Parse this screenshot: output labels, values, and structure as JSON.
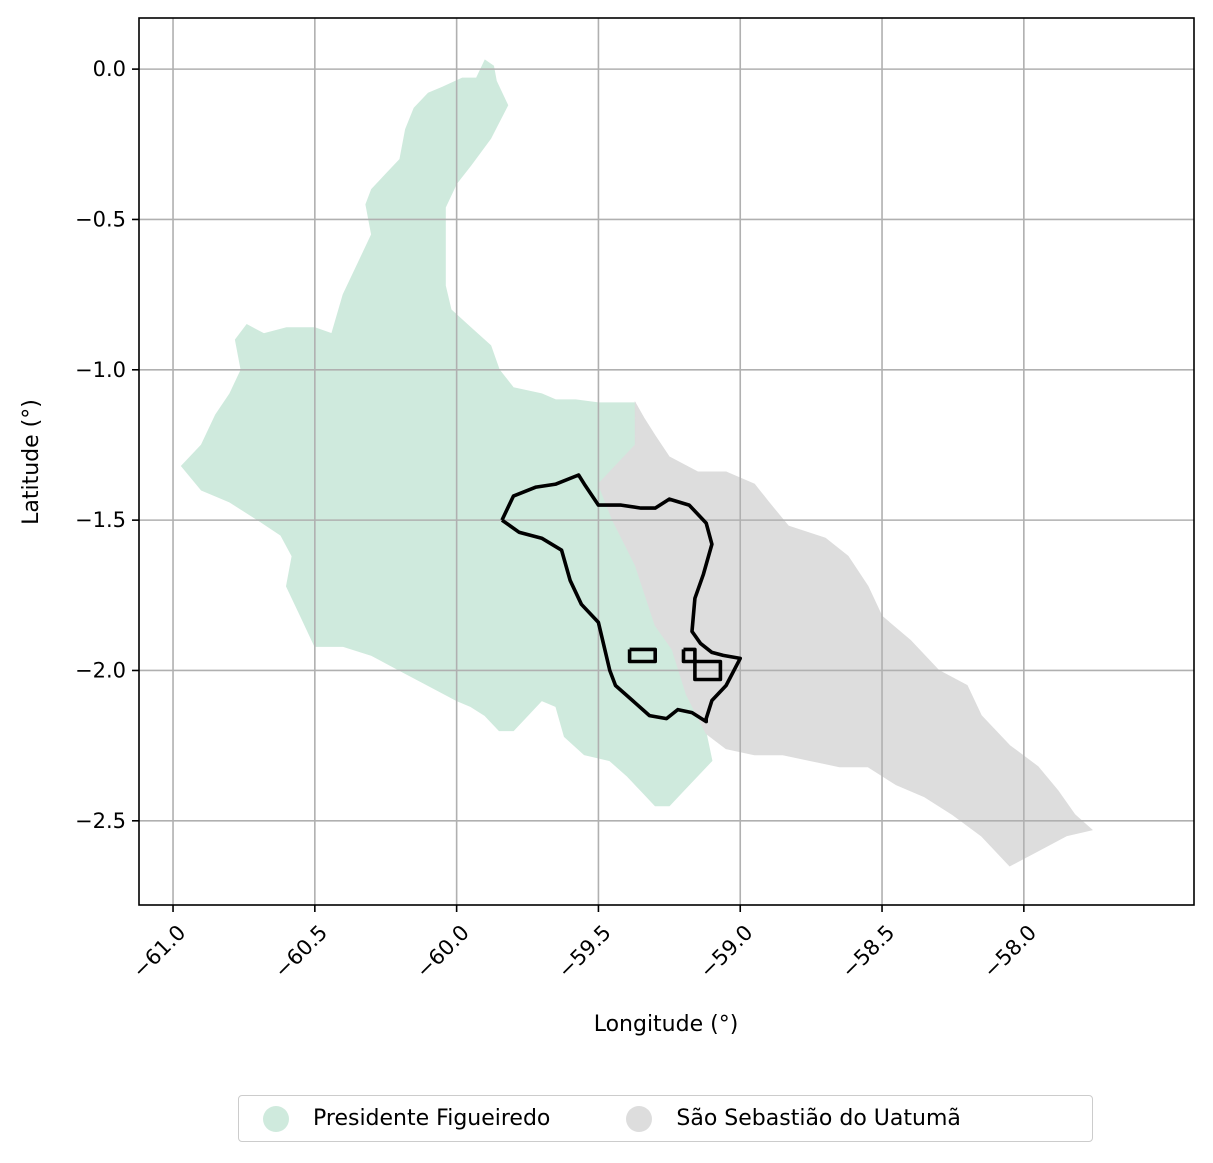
{
  "chart_data": {
    "type": "map",
    "xlabel": "Longitude (°)",
    "ylabel": "Latitude (°)",
    "xlim": [
      -61.12,
      -57.4
    ],
    "ylim": [
      -2.78,
      0.17
    ],
    "x_ticks": [
      -61.0,
      -60.5,
      -60.0,
      -59.5,
      -59.0,
      -58.5,
      -58.0
    ],
    "x_tick_labels": [
      "−61.0",
      "−60.5",
      "−60.0",
      "−59.5",
      "−59.0",
      "−58.5",
      "−58.0"
    ],
    "y_ticks": [
      0.0,
      -0.5,
      -1.0,
      -1.5,
      -2.0,
      -2.5
    ],
    "y_tick_labels": [
      "0.0",
      "−0.5",
      "−1.0",
      "−1.5",
      "−2.0",
      "−2.5"
    ],
    "grid": true,
    "legend_placement": "bottom-center, below plot",
    "regions": [
      {
        "name": "Presidente Figueiredo",
        "color": "#cfeadd",
        "boundary": [
          [
            -59.9,
            0.03
          ],
          [
            -59.87,
            0.01
          ],
          [
            -59.86,
            -0.04
          ],
          [
            -59.82,
            -0.12
          ],
          [
            -59.88,
            -0.23
          ],
          [
            -59.95,
            -0.32
          ],
          [
            -60.0,
            -0.38
          ],
          [
            -60.04,
            -0.46
          ],
          [
            -60.04,
            -0.6
          ],
          [
            -60.04,
            -0.72
          ],
          [
            -60.02,
            -0.8
          ],
          [
            -59.95,
            -0.86
          ],
          [
            -59.88,
            -0.92
          ],
          [
            -59.85,
            -1.0
          ],
          [
            -59.8,
            -1.06
          ],
          [
            -59.7,
            -1.08
          ],
          [
            -59.65,
            -1.1
          ],
          [
            -59.58,
            -1.1
          ],
          [
            -59.5,
            -1.11
          ],
          [
            -59.37,
            -1.11
          ],
          [
            -59.37,
            -1.25
          ],
          [
            -59.4,
            -1.28
          ],
          [
            -59.45,
            -1.33
          ],
          [
            -59.5,
            -1.38
          ],
          [
            -59.45,
            -1.5
          ],
          [
            -59.37,
            -1.65
          ],
          [
            -59.3,
            -1.85
          ],
          [
            -59.24,
            -1.93
          ],
          [
            -59.19,
            -2.08
          ],
          [
            -59.12,
            -2.21
          ],
          [
            -59.1,
            -2.3
          ],
          [
            -59.15,
            -2.35
          ],
          [
            -59.2,
            -2.4
          ],
          [
            -59.25,
            -2.45
          ],
          [
            -59.3,
            -2.45
          ],
          [
            -59.35,
            -2.4
          ],
          [
            -59.4,
            -2.35
          ],
          [
            -59.46,
            -2.3
          ],
          [
            -59.55,
            -2.28
          ],
          [
            -59.62,
            -2.22
          ],
          [
            -59.65,
            -2.12
          ],
          [
            -59.7,
            -2.1
          ],
          [
            -59.75,
            -2.15
          ],
          [
            -59.8,
            -2.2
          ],
          [
            -59.85,
            -2.2
          ],
          [
            -59.9,
            -2.15
          ],
          [
            -59.95,
            -2.12
          ],
          [
            -60.0,
            -2.1
          ],
          [
            -60.1,
            -2.05
          ],
          [
            -60.2,
            -2.0
          ],
          [
            -60.3,
            -1.95
          ],
          [
            -60.4,
            -1.92
          ],
          [
            -60.5,
            -1.92
          ],
          [
            -60.55,
            -1.82
          ],
          [
            -60.6,
            -1.72
          ],
          [
            -60.58,
            -1.62
          ],
          [
            -60.62,
            -1.55
          ],
          [
            -60.7,
            -1.5
          ],
          [
            -60.8,
            -1.44
          ],
          [
            -60.85,
            -1.42
          ],
          [
            -60.9,
            -1.4
          ],
          [
            -60.97,
            -1.32
          ],
          [
            -60.9,
            -1.25
          ],
          [
            -60.85,
            -1.15
          ],
          [
            -60.8,
            -1.08
          ],
          [
            -60.76,
            -1.0
          ],
          [
            -60.78,
            -0.9
          ],
          [
            -60.74,
            -0.85
          ],
          [
            -60.68,
            -0.88
          ],
          [
            -60.6,
            -0.86
          ],
          [
            -60.5,
            -0.86
          ],
          [
            -60.44,
            -0.88
          ],
          [
            -60.4,
            -0.75
          ],
          [
            -60.35,
            -0.65
          ],
          [
            -60.3,
            -0.55
          ],
          [
            -60.32,
            -0.45
          ],
          [
            -60.3,
            -0.4
          ],
          [
            -60.25,
            -0.35
          ],
          [
            -60.2,
            -0.3
          ],
          [
            -60.18,
            -0.2
          ],
          [
            -60.15,
            -0.13
          ],
          [
            -60.1,
            -0.08
          ],
          [
            -60.05,
            -0.06
          ],
          [
            -59.98,
            -0.03
          ],
          [
            -59.93,
            -0.03
          ]
        ]
      },
      {
        "name": "São Sebastião do Uatumã",
        "color": "#dddddd",
        "boundary": [
          [
            -59.37,
            -1.11
          ],
          [
            -59.34,
            -1.16
          ],
          [
            -59.3,
            -1.22
          ],
          [
            -59.25,
            -1.29
          ],
          [
            -59.15,
            -1.34
          ],
          [
            -59.05,
            -1.34
          ],
          [
            -58.95,
            -1.38
          ],
          [
            -58.9,
            -1.44
          ],
          [
            -58.83,
            -1.52
          ],
          [
            -58.7,
            -1.56
          ],
          [
            -58.62,
            -1.62
          ],
          [
            -58.55,
            -1.72
          ],
          [
            -58.5,
            -1.82
          ],
          [
            -58.4,
            -1.9
          ],
          [
            -58.3,
            -2.0
          ],
          [
            -58.2,
            -2.05
          ],
          [
            -58.15,
            -2.15
          ],
          [
            -58.05,
            -2.25
          ],
          [
            -57.95,
            -2.32
          ],
          [
            -57.88,
            -2.4
          ],
          [
            -57.82,
            -2.48
          ],
          [
            -57.76,
            -2.53
          ],
          [
            -57.85,
            -2.55
          ],
          [
            -57.95,
            -2.6
          ],
          [
            -58.05,
            -2.65
          ],
          [
            -58.15,
            -2.55
          ],
          [
            -58.25,
            -2.48
          ],
          [
            -58.35,
            -2.42
          ],
          [
            -58.45,
            -2.38
          ],
          [
            -58.55,
            -2.32
          ],
          [
            -58.65,
            -2.32
          ],
          [
            -58.75,
            -2.3
          ],
          [
            -58.85,
            -2.28
          ],
          [
            -58.95,
            -2.28
          ],
          [
            -59.05,
            -2.26
          ],
          [
            -59.12,
            -2.21
          ],
          [
            -59.19,
            -2.08
          ],
          [
            -59.24,
            -1.93
          ],
          [
            -59.3,
            -1.85
          ],
          [
            -59.37,
            -1.65
          ],
          [
            -59.45,
            -1.5
          ],
          [
            -59.5,
            -1.38
          ],
          [
            -59.45,
            -1.33
          ],
          [
            -59.4,
            -1.28
          ],
          [
            -59.37,
            -1.25
          ]
        ]
      }
    ],
    "outlines": [
      [
        [
          -59.84,
          -1.5
        ],
        [
          -59.8,
          -1.42
        ],
        [
          -59.72,
          -1.39
        ],
        [
          -59.65,
          -1.38
        ],
        [
          -59.57,
          -1.35
        ],
        [
          -59.55,
          -1.38
        ],
        [
          -59.5,
          -1.45
        ],
        [
          -59.42,
          -1.45
        ],
        [
          -59.35,
          -1.46
        ],
        [
          -59.3,
          -1.46
        ],
        [
          -59.25,
          -1.43
        ],
        [
          -59.18,
          -1.45
        ],
        [
          -59.12,
          -1.51
        ],
        [
          -59.1,
          -1.58
        ],
        [
          -59.13,
          -1.68
        ],
        [
          -59.16,
          -1.76
        ],
        [
          -59.17,
          -1.87
        ],
        [
          -59.14,
          -1.91
        ],
        [
          -59.1,
          -1.94
        ],
        [
          -59.06,
          -1.95
        ],
        [
          -59.0,
          -1.96
        ],
        [
          -59.05,
          -2.05
        ],
        [
          -59.1,
          -2.1
        ],
        [
          -59.12,
          -2.16
        ],
        [
          -59.12,
          -2.17
        ],
        [
          -59.17,
          -2.14
        ],
        [
          -59.22,
          -2.13
        ],
        [
          -59.26,
          -2.16
        ],
        [
          -59.32,
          -2.15
        ],
        [
          -59.38,
          -2.1
        ],
        [
          -59.44,
          -2.05
        ],
        [
          -59.46,
          -2.0
        ],
        [
          -59.48,
          -1.92
        ],
        [
          -59.5,
          -1.84
        ],
        [
          -59.56,
          -1.78
        ],
        [
          -59.6,
          -1.7
        ],
        [
          -59.63,
          -1.6
        ],
        [
          -59.7,
          -1.56
        ],
        [
          -59.78,
          -1.54
        ],
        [
          -59.84,
          -1.5
        ]
      ],
      [
        [
          -59.39,
          -1.93
        ],
        [
          -59.3,
          -1.93
        ],
        [
          -59.3,
          -1.97
        ],
        [
          -59.39,
          -1.97
        ],
        [
          -59.39,
          -1.93
        ]
      ],
      [
        [
          -59.2,
          -1.93
        ],
        [
          -59.16,
          -1.93
        ],
        [
          -59.16,
          -1.97
        ],
        [
          -59.2,
          -1.97
        ],
        [
          -59.2,
          -1.93
        ]
      ],
      [
        [
          -59.16,
          -1.97
        ],
        [
          -59.07,
          -1.97
        ],
        [
          -59.07,
          -2.03
        ],
        [
          -59.16,
          -2.03
        ],
        [
          -59.16,
          -1.97
        ]
      ]
    ]
  },
  "legend": {
    "items": [
      {
        "label": "Presidente Figueiredo",
        "color": "#cfeadd"
      },
      {
        "label": "São Sebastião do Uatumã",
        "color": "#dddddd"
      }
    ]
  }
}
